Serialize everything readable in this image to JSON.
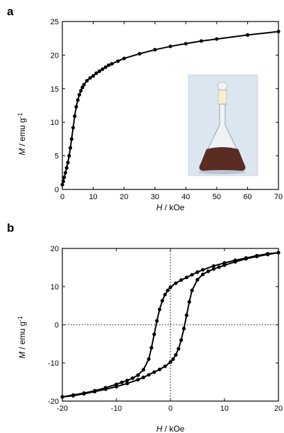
{
  "chart_data": [
    {
      "panel_label": "a",
      "type": "line",
      "markers": true,
      "xlabel_symbol": "H",
      "xlabel_unit": " / kOe",
      "ylabel_symbol": "M",
      "ylabel_unit": " / emu g",
      "ylabel_superscript": "-1",
      "xlim": [
        0,
        70
      ],
      "ylim": [
        0,
        25
      ],
      "xticks": [
        0,
        10,
        20,
        30,
        40,
        50,
        60,
        70
      ],
      "yticks": [
        0,
        5,
        10,
        15,
        20,
        25
      ],
      "grid": false,
      "inset_image": "photo-flask-with-brown-powder",
      "series": [
        {
          "x": [
            0,
            0.3,
            0.6,
            1.0,
            1.4,
            1.8,
            2.2,
            2.6,
            3.0,
            3.5,
            4.0,
            4.5,
            5.0,
            5.5,
            6.0,
            6.5,
            7.0,
            8.0,
            9.0,
            10,
            11,
            12,
            13,
            14,
            15,
            16,
            18,
            20,
            25,
            30,
            35,
            40,
            45,
            50,
            60,
            70
          ],
          "y": [
            0.7,
            1.2,
            1.8,
            2.5,
            3.2,
            4.0,
            5.0,
            6.2,
            7.5,
            9.2,
            10.9,
            12.3,
            13.3,
            14.1,
            14.7,
            15.2,
            15.6,
            16.2,
            16.6,
            16.9,
            17.3,
            17.6,
            17.9,
            18.2,
            18.5,
            18.7,
            19.1,
            19.5,
            20.2,
            20.8,
            21.3,
            21.7,
            22.1,
            22.4,
            23.0,
            23.5
          ]
        }
      ]
    },
    {
      "panel_label": "b",
      "type": "line",
      "markers": true,
      "xlabel_symbol": "H",
      "xlabel_unit": " / kOe",
      "ylabel_symbol": "M",
      "ylabel_unit": " / emu g",
      "ylabel_superscript": "-1",
      "xlim": [
        -20,
        20
      ],
      "ylim": [
        -20,
        20
      ],
      "xticks": [
        -20,
        -10,
        0,
        10,
        20
      ],
      "yticks": [
        -20,
        -10,
        0,
        10,
        20
      ],
      "grid": false,
      "zero_lines": "dotted",
      "series": [
        {
          "x": [
            20,
            18,
            16,
            14,
            12,
            10,
            8,
            6,
            5,
            4,
            3,
            2,
            1,
            0,
            -0.5,
            -1,
            -1.5,
            -2,
            -2.5,
            -3,
            -3.5,
            -4,
            -5,
            -6,
            -7,
            -8,
            -9,
            -10,
            -12,
            -14,
            -16,
            -18,
            -20
          ],
          "y": [
            18.9,
            18.6,
            18.1,
            17.5,
            16.9,
            16.2,
            15.4,
            14.4,
            13.8,
            13.1,
            12.4,
            11.7,
            10.9,
            9.8,
            9.0,
            7.9,
            6.3,
            4.0,
            1.0,
            -2.5,
            -6.0,
            -9.0,
            -11.8,
            -13.2,
            -14.0,
            -14.6,
            -15.1,
            -15.6,
            -16.5,
            -17.3,
            -17.9,
            -18.4,
            -18.9
          ]
        },
        {
          "x": [
            -20,
            -18,
            -16,
            -14,
            -12,
            -10,
            -8,
            -6,
            -5,
            -4,
            -3,
            -2,
            -1,
            0,
            0.5,
            1,
            1.5,
            2,
            2.5,
            3,
            3.5,
            4,
            5,
            6,
            7,
            8,
            9,
            10,
            12,
            14,
            16,
            18,
            20
          ],
          "y": [
            -18.9,
            -18.6,
            -18.1,
            -17.5,
            -16.9,
            -16.2,
            -15.4,
            -14.4,
            -13.8,
            -13.1,
            -12.4,
            -11.7,
            -10.9,
            -9.8,
            -9.0,
            -7.9,
            -6.3,
            -4.0,
            -1.0,
            2.5,
            6.0,
            9.0,
            11.8,
            13.2,
            14.0,
            14.6,
            15.1,
            15.6,
            16.5,
            17.3,
            17.9,
            18.4,
            18.9
          ]
        }
      ]
    }
  ]
}
